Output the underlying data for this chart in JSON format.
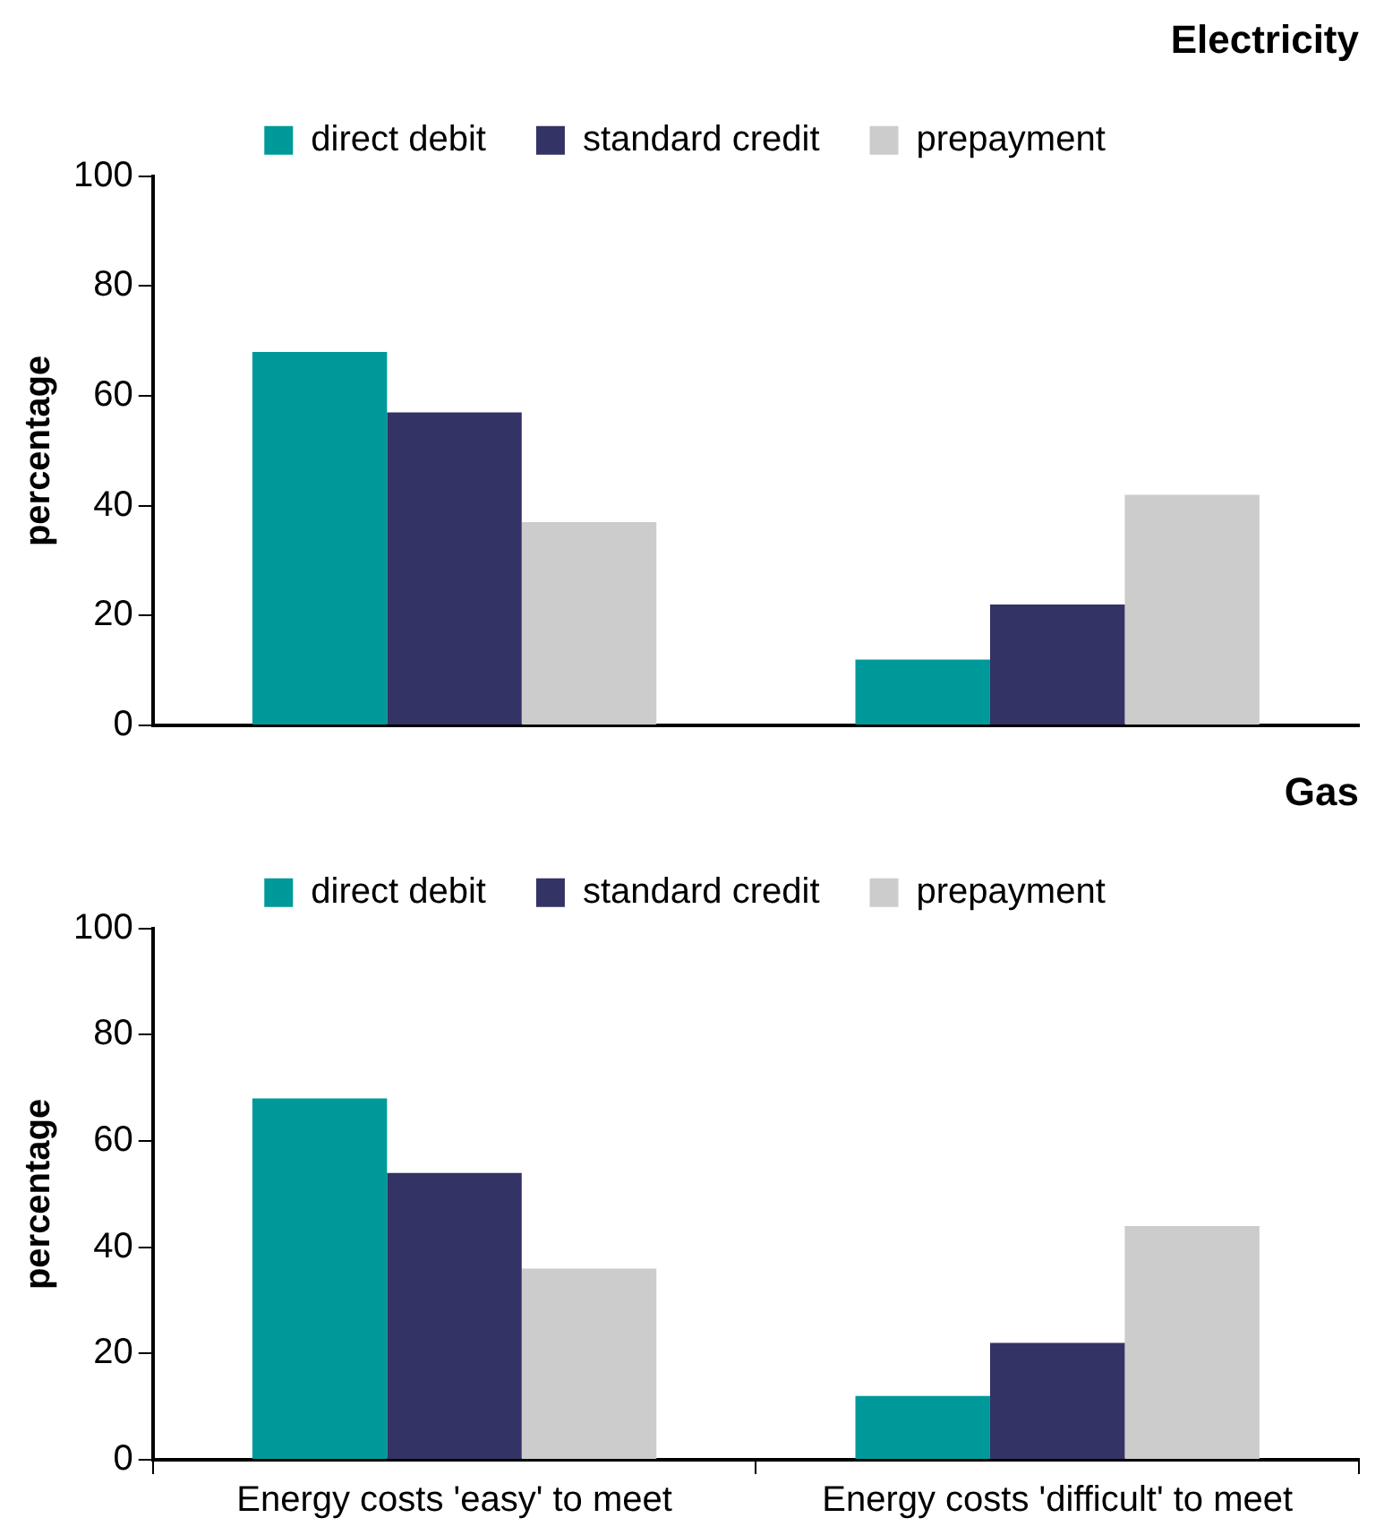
{
  "chart_data": [
    {
      "type": "bar",
      "title": "Electricity",
      "ylabel": "percentage",
      "categories": [
        null,
        null
      ],
      "ylim": [
        0,
        100
      ],
      "yticks": [
        0,
        20,
        40,
        60,
        80,
        100
      ],
      "grid": false,
      "legend": "top",
      "tick_labels": "y",
      "series": [
        {
          "name": "direct debit",
          "color": "#009999",
          "values": [
            68,
            12
          ]
        },
        {
          "name": "standard credit",
          "color": "#333366",
          "values": [
            57,
            22
          ]
        },
        {
          "name": "prepayment",
          "color": "#cccccc",
          "values": [
            37,
            42
          ]
        }
      ]
    },
    {
      "type": "bar",
      "title": "Gas",
      "ylabel": "percentage",
      "categories": [
        "Energy costs 'easy' to meet",
        "Energy costs 'difficult' to meet"
      ],
      "ylim": [
        0,
        100
      ],
      "yticks": [
        0,
        20,
        40,
        60,
        80,
        100
      ],
      "grid": false,
      "legend": "top",
      "series": [
        {
          "name": "direct debit",
          "color": "#009999",
          "values": [
            68,
            12
          ]
        },
        {
          "name": "standard credit",
          "color": "#333366",
          "values": [
            54,
            22
          ]
        },
        {
          "name": "prepayment",
          "color": "#cccccc",
          "values": [
            36,
            44
          ]
        }
      ]
    }
  ]
}
